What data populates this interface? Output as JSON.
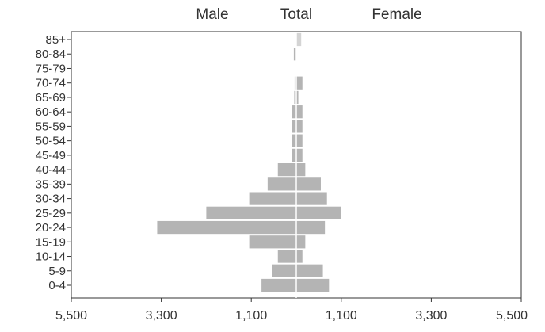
{
  "chart_data": {
    "type": "bar",
    "orientation": "horizontal",
    "kind": "population-pyramid",
    "headers": [
      "Male",
      "Total",
      "Female"
    ],
    "categories": [
      "85+",
      "80-84",
      "75-79",
      "70-74",
      "65-69",
      "60-64",
      "55-59",
      "50-54",
      "45-49",
      "40-44",
      "35-39",
      "30-34",
      "25-29",
      "20-24",
      "15-19",
      "10-14",
      "5-9",
      "0-4"
    ],
    "series": [
      {
        "name": "Male",
        "values": [
          0,
          60,
          0,
          40,
          50,
          100,
          100,
          100,
          100,
          450,
          700,
          1150,
          2200,
          3400,
          1150,
          450,
          600,
          850
        ]
      },
      {
        "name": "Female",
        "values": [
          120,
          0,
          0,
          150,
          50,
          150,
          150,
          150,
          150,
          220,
          600,
          750,
          1100,
          700,
          220,
          150,
          650,
          800
        ]
      }
    ],
    "x_ticks": [
      "5,500",
      "3,300",
      "1,100",
      "1,100",
      "3,300",
      "5,500"
    ],
    "xlim": [
      -5500,
      5500
    ],
    "grid": false,
    "colors": {
      "bar": "#b4b4b4",
      "bar_light": "#d4d4d4",
      "axis": "#333333"
    }
  }
}
